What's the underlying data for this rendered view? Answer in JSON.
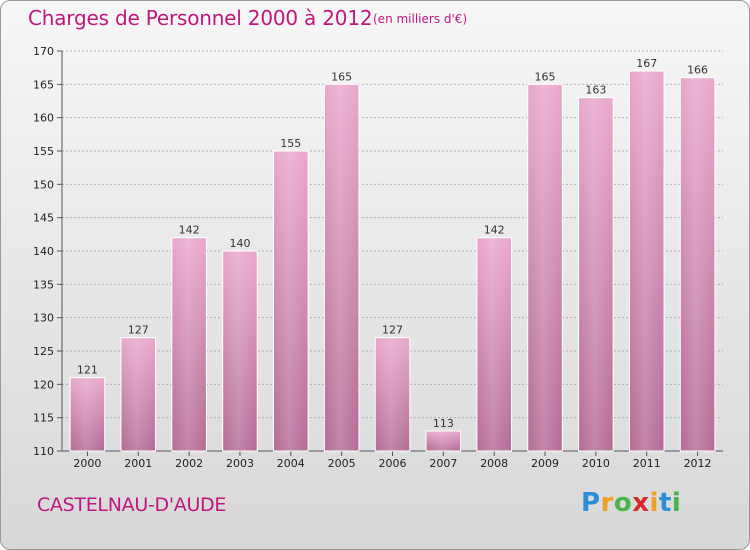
{
  "title": "Charges de Personnel 2000 à 2012",
  "subtitle": "(en milliers d'€)",
  "commune": "CASTELNAU-D'AUDE",
  "brand": {
    "text": "Proxiti",
    "letters": [
      {
        "ch": "P",
        "color": "#2a8fd6"
      },
      {
        "ch": "r",
        "color": "#f0a020"
      },
      {
        "ch": "o",
        "color": "#4bb34b"
      },
      {
        "ch": "x",
        "color": "#d42a2a"
      },
      {
        "ch": "i",
        "color": "#f0a020"
      },
      {
        "ch": "t",
        "color": "#2a8fd6"
      },
      {
        "ch": "i",
        "color": "#4bb34b"
      }
    ]
  },
  "colors": {
    "title": "#c0177f",
    "bar_top": "#e8a7cc",
    "bar_bottom": "#b36b95",
    "grid": "#b0b0b0"
  },
  "chart_data": {
    "type": "bar",
    "categories": [
      "2000",
      "2001",
      "2002",
      "2003",
      "2004",
      "2005",
      "2006",
      "2007",
      "2008",
      "2009",
      "2010",
      "2011",
      "2012"
    ],
    "values": [
      121,
      127,
      142,
      140,
      155,
      165,
      127,
      113,
      142,
      165,
      163,
      167,
      166
    ],
    "ylim": [
      110,
      170
    ],
    "yticks": [
      110,
      115,
      120,
      125,
      130,
      135,
      140,
      145,
      150,
      155,
      160,
      165,
      170
    ],
    "grid": true,
    "title": "Charges de Personnel 2000 à 2012",
    "xlabel": "",
    "ylabel": ""
  }
}
